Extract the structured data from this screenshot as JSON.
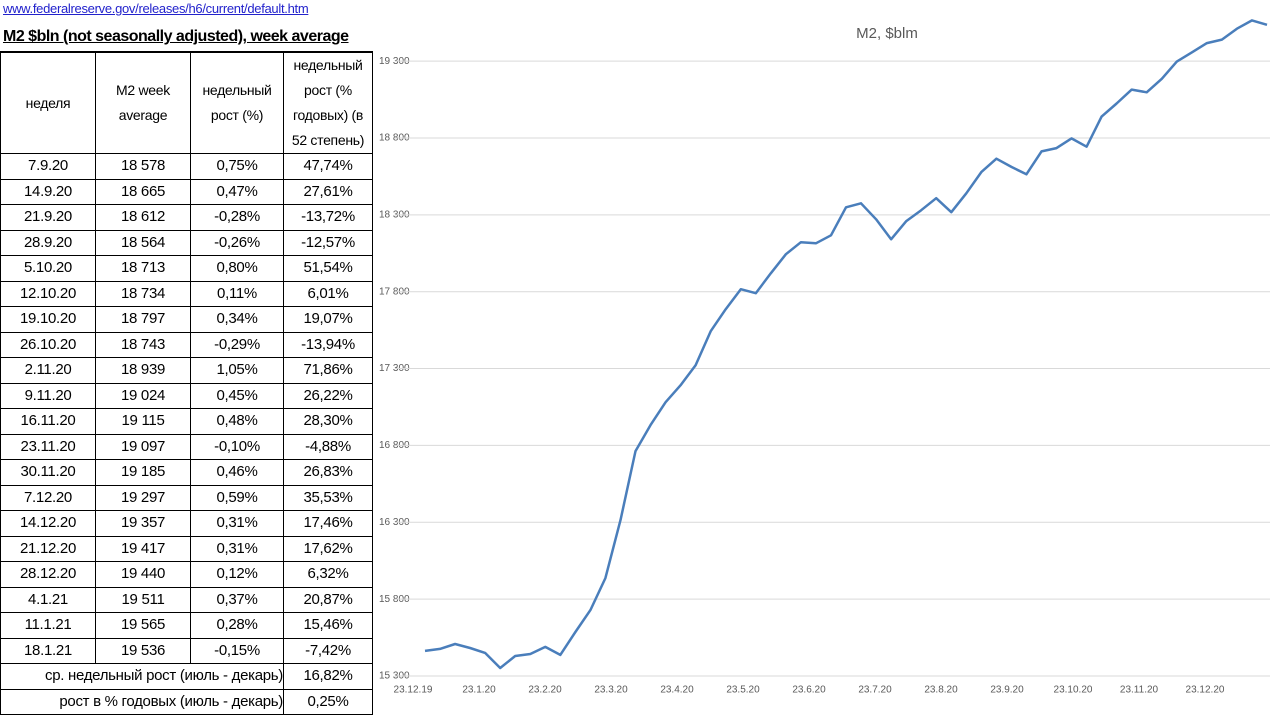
{
  "link": "www.federalreserve.gov/releases/h6/current/default.htm",
  "title": "M2 $bln (not seasonally adjusted), week average",
  "table": {
    "header": [
      "неделя",
      "M2 week average",
      "недельный рост (%)",
      "недельный рост (% годовых) (в 52 степень)"
    ],
    "rows": [
      [
        "7.9.20",
        "18 578",
        "0,75%",
        "47,74%"
      ],
      [
        "14.9.20",
        "18 665",
        "0,47%",
        "27,61%"
      ],
      [
        "21.9.20",
        "18 612",
        "-0,28%",
        "-13,72%"
      ],
      [
        "28.9.20",
        "18 564",
        "-0,26%",
        "-12,57%"
      ],
      [
        "5.10.20",
        "18 713",
        "0,80%",
        "51,54%"
      ],
      [
        "12.10.20",
        "18 734",
        "0,11%",
        "6,01%"
      ],
      [
        "19.10.20",
        "18 797",
        "0,34%",
        "19,07%"
      ],
      [
        "26.10.20",
        "18 743",
        "-0,29%",
        "-13,94%"
      ],
      [
        "2.11.20",
        "18 939",
        "1,05%",
        "71,86%"
      ],
      [
        "9.11.20",
        "19 024",
        "0,45%",
        "26,22%"
      ],
      [
        "16.11.20",
        "19 115",
        "0,48%",
        "28,30%"
      ],
      [
        "23.11.20",
        "19 097",
        "-0,10%",
        "-4,88%"
      ],
      [
        "30.11.20",
        "19 185",
        "0,46%",
        "26,83%"
      ],
      [
        "7.12.20",
        "19 297",
        "0,59%",
        "35,53%"
      ],
      [
        "14.12.20",
        "19 357",
        "0,31%",
        "17,46%"
      ],
      [
        "21.12.20",
        "19 417",
        "0,31%",
        "17,62%"
      ],
      [
        "28.12.20",
        "19 440",
        "0,12%",
        "6,32%"
      ],
      [
        "4.1.21",
        "19 511",
        "0,37%",
        "20,87%"
      ],
      [
        "11.1.21",
        "19 565",
        "0,28%",
        "15,46%"
      ],
      [
        "18.1.21",
        "19 536",
        "-0,15%",
        "-7,42%"
      ]
    ],
    "summary": [
      [
        "ср. недельный рост (июль - декарь)",
        "16,82%"
      ],
      [
        "рост в % годовых (июль - декарь)",
        "0,25%"
      ]
    ]
  },
  "chart_data": {
    "type": "line",
    "title": "M2, $blm",
    "color": "#4a7ebb",
    "x_labels": [
      "23.12.19",
      "23.1.20",
      "23.2.20",
      "23.3.20",
      "23.4.20",
      "23.5.20",
      "23.6.20",
      "23.7.20",
      "23.8.20",
      "23.9.20",
      "23.10.20",
      "23.11.20",
      "23.12.20"
    ],
    "values": [
      15463,
      15476,
      15508,
      15482,
      15450,
      15352,
      15430,
      15443,
      15489,
      15437,
      15586,
      15729,
      15937,
      16314,
      16763,
      16932,
      17081,
      17192,
      17322,
      17543,
      17686,
      17816,
      17790,
      17920,
      18044,
      18122,
      18115,
      18167,
      18349,
      18375,
      18271,
      18141,
      18258,
      18330,
      18408,
      18317,
      18440,
      18578,
      18665,
      18612,
      18564,
      18713,
      18734,
      18797,
      18743,
      18939,
      19024,
      19115,
      19097,
      19185,
      19297,
      19357,
      19417,
      19440,
      19511,
      19565,
      19536
    ],
    "ylim": [
      15300,
      19600
    ],
    "yticks": [
      {
        "value": 15300,
        "label": "15 300"
      },
      {
        "value": 15800,
        "label": "15 800"
      },
      {
        "value": 16300,
        "label": "16 300"
      },
      {
        "value": 16800,
        "label": "16 800"
      },
      {
        "value": 17300,
        "label": "17 300"
      },
      {
        "value": 17800,
        "label": "17 800"
      },
      {
        "value": 18300,
        "label": "18 300"
      },
      {
        "value": 18800,
        "label": "18 800"
      },
      {
        "value": 19300,
        "label": "19 300"
      }
    ],
    "grid": true
  }
}
